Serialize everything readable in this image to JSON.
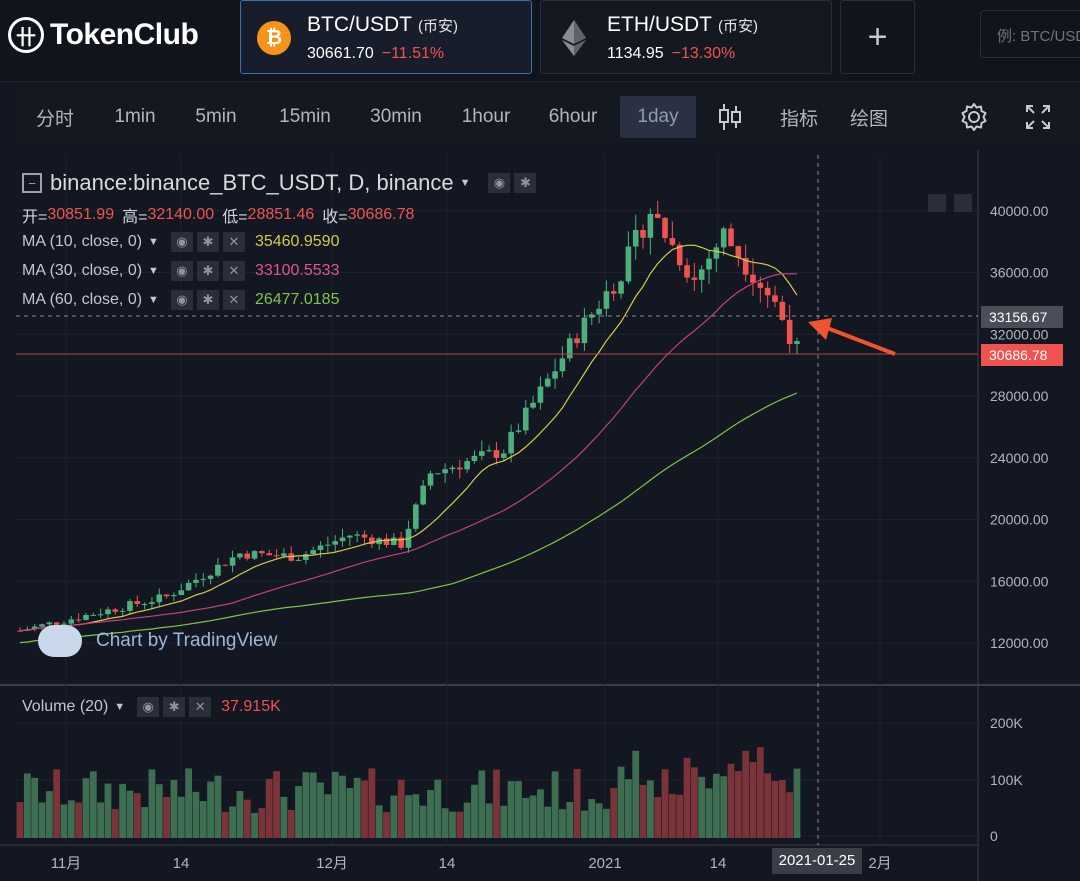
{
  "brand": {
    "logo_glyph": "卄",
    "name": "TokenClub"
  },
  "pairs": [
    {
      "symbol": "BTC/USDT",
      "exchange": "(币安)",
      "price": "30661.70",
      "change": "−11.51%",
      "icon": "bitcoin-icon",
      "icon_glyph": "₿"
    },
    {
      "symbol": "ETH/USDT",
      "exchange": "(币安)",
      "price": "1134.95",
      "change": "−13.30%",
      "icon": "ethereum-icon"
    }
  ],
  "add_pair_label": "+",
  "search": {
    "placeholder": "例: BTC/USDT"
  },
  "toolbar": {
    "timeframes": [
      "分时",
      "1min",
      "5min",
      "15min",
      "30min",
      "1hour",
      "6hour",
      "1day"
    ],
    "active_timeframe": "1day",
    "indicators_label": "指标",
    "draw_label": "绘图"
  },
  "chart": {
    "title": "binance:binance_BTC_USDT, D, binance",
    "ohlc": {
      "open_label": "开=",
      "open": "30851.99",
      "high_label": "高=",
      "high": "32140.00",
      "low_label": "低=",
      "low": "28851.46",
      "close_label": "收=",
      "close": "30686.78"
    },
    "ma": [
      {
        "label": "MA (10, close, 0)",
        "value": "35460.9590",
        "color": "#d4c94a"
      },
      {
        "label": "MA (30, close, 0)",
        "value": "33100.5533",
        "color": "#c2407a"
      },
      {
        "label": "MA (60, close, 0)",
        "value": "26477.0185",
        "color": "#7ec448"
      }
    ],
    "price_ticks": [
      "40000.00",
      "36000.00",
      "32000.00",
      "28000.00",
      "24000.00",
      "20000.00",
      "16000.00",
      "12000.00"
    ],
    "crosshair_price": "33156.67",
    "last_price": "30686.78",
    "volume": {
      "label": "Volume (20)",
      "value": "37.915K"
    },
    "volume_ticks": [
      "200K",
      "100K",
      "0"
    ],
    "time_ticks": [
      "11月",
      "14",
      "12月",
      "14",
      "2021",
      "14",
      "2月"
    ],
    "crosshair_date": "2021-01-25",
    "watermark": "Chart by TradingView",
    "colors": {
      "up": "#4caf7d",
      "down": "#ef5350",
      "arrow": "#f0542d"
    }
  }
}
